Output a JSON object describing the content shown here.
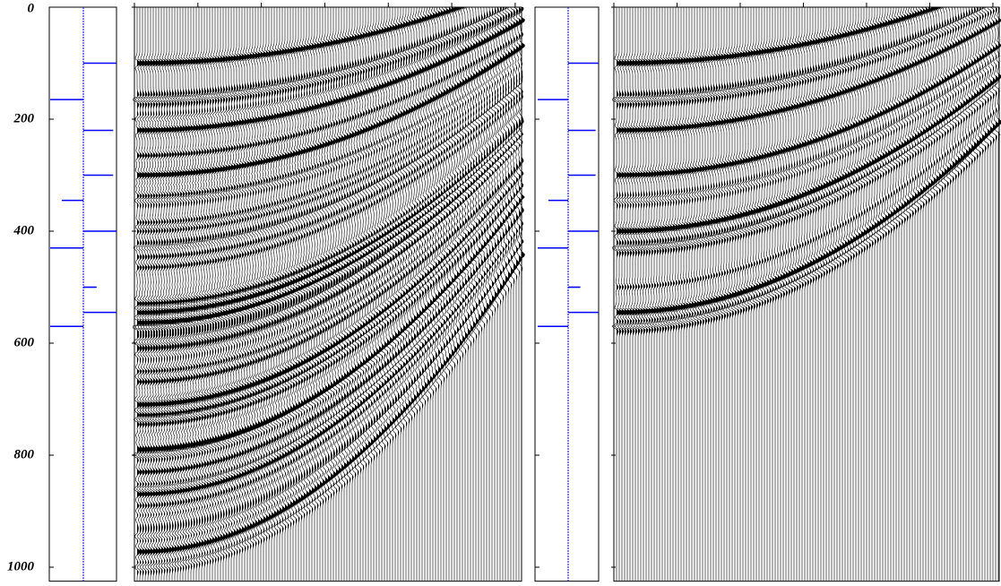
{
  "chart_data": {
    "type": "seismic",
    "ylim": [
      0,
      1025
    ],
    "yticks": [
      0,
      200,
      400,
      600,
      800,
      1000
    ],
    "reflectivity": {
      "times": [
        100,
        165,
        220,
        300,
        345,
        400,
        430,
        500,
        545,
        570
      ],
      "values": [
        1,
        -1,
        0.9,
        0.9,
        -0.65,
        1,
        -1,
        0.4,
        1,
        -1
      ]
    },
    "color": "#0000ff"
  }
}
